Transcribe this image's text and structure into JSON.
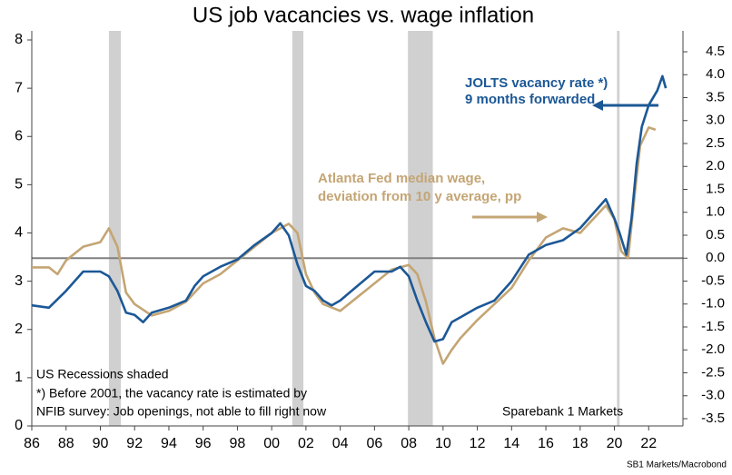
{
  "chart_data": {
    "type": "line",
    "title": "US job vacancies vs. wage inflation",
    "annotations": {
      "jolts_1": "JOLTS vacancy rate *)",
      "jolts_2": "9 months forwarded",
      "wage_1": "Atlanta Fed median wage,",
      "wage_2": "deviation from 10 y average, pp",
      "note_1": "US Recessions shaded",
      "note_2": "*) Before 2001, the vacancy rate is estimated by",
      "note_3": "NFIB survey: Job openings, not able to fill right now",
      "brand": "Sparebank 1 Markets",
      "source": "SB1 Markets/Macrobond"
    },
    "xlim": [
      1986,
      2024
    ],
    "xticks": [
      {
        "value": 1986,
        "label": "86"
      },
      {
        "value": 1988,
        "label": "88"
      },
      {
        "value": 1990,
        "label": "90"
      },
      {
        "value": 1992,
        "label": "92"
      },
      {
        "value": 1994,
        "label": "94"
      },
      {
        "value": 1996,
        "label": "96"
      },
      {
        "value": 1998,
        "label": "98"
      },
      {
        "value": 2000,
        "label": "00"
      },
      {
        "value": 2002,
        "label": "02"
      },
      {
        "value": 2004,
        "label": "04"
      },
      {
        "value": 2006,
        "label": "06"
      },
      {
        "value": 2008,
        "label": "08"
      },
      {
        "value": 2010,
        "label": "10"
      },
      {
        "value": 2012,
        "label": "12"
      },
      {
        "value": 2014,
        "label": "14"
      },
      {
        "value": 2016,
        "label": "16"
      },
      {
        "value": 2018,
        "label": "18"
      },
      {
        "value": 2020,
        "label": "20"
      },
      {
        "value": 2022,
        "label": "22"
      }
    ],
    "ylim": [
      0,
      8
    ],
    "yticks": [
      0,
      1,
      2,
      3,
      4,
      5,
      6,
      7,
      8
    ],
    "y2lim": [
      -3.5,
      4.5
    ],
    "y2ticks": [
      -3.5,
      {
        "value": -3,
        "label": "-3.0"
      },
      -2.5,
      {
        "value": -2,
        "label": "-2.0"
      },
      -1.5,
      {
        "value": -1,
        "label": "-1.0"
      },
      -0.5,
      {
        "value": 0,
        "label": "0.0"
      },
      0.5,
      {
        "value": 1,
        "label": "1.0"
      },
      1.5,
      {
        "value": 2,
        "label": "2.0"
      },
      2.5,
      {
        "value": 3,
        "label": "3.0"
      },
      3.5,
      {
        "value": 4,
        "label": "4.0"
      },
      4.5
    ],
    "recessions": [
      [
        1990.5,
        1991.2
      ],
      [
        2001.2,
        2001.85
      ],
      [
        2007.95,
        2009.4
      ],
      [
        2020.15,
        2020.3
      ]
    ],
    "recession_color": "#d0d0d0",
    "zero_line_y2": 0,
    "series": [
      {
        "name": "JOLTS vacancy rate",
        "color": "#1c5896",
        "axis": "y",
        "x": [
          1986,
          1987,
          1988,
          1989,
          1990,
          1990.5,
          1991,
          1991.5,
          1992,
          1992.5,
          1993,
          1994,
          1995,
          1995.5,
          1996,
          1997,
          1998,
          1999,
          2000,
          2000.5,
          2001,
          2001.5,
          2002,
          2002.5,
          2003,
          2003.5,
          2004,
          2005,
          2006,
          2007,
          2007.5,
          2008,
          2008.5,
          2009,
          2009.5,
          2010,
          2010.5,
          2011,
          2012,
          2013,
          2014,
          2015,
          2016,
          2017,
          2018,
          2019,
          2019.5,
          2020,
          2020.3,
          2020.7,
          2021,
          2021.3,
          2021.6,
          2022,
          2022.5,
          2022.8,
          2023
        ],
        "values": [
          2.5,
          2.45,
          2.8,
          3.2,
          3.2,
          3.1,
          2.8,
          2.35,
          2.3,
          2.15,
          2.35,
          2.45,
          2.6,
          2.9,
          3.1,
          3.3,
          3.45,
          3.75,
          4.0,
          4.2,
          3.95,
          3.35,
          2.9,
          2.8,
          2.6,
          2.5,
          2.6,
          2.9,
          3.2,
          3.2,
          3.3,
          3.1,
          2.6,
          2.15,
          1.75,
          1.8,
          2.15,
          2.25,
          2.45,
          2.6,
          3.0,
          3.55,
          3.75,
          3.85,
          4.1,
          4.5,
          4.7,
          4.3,
          4.0,
          3.55,
          4.3,
          5.45,
          6.2,
          6.65,
          6.95,
          7.25,
          7.0
        ]
      },
      {
        "name": "Atlanta Fed median wage",
        "color": "#c4a574",
        "axis": "y2",
        "x": [
          1986,
          1987,
          1987.5,
          1988,
          1989,
          1990,
          1990.5,
          1991,
          1991.5,
          1992,
          1993,
          1994,
          1995,
          1996,
          1997,
          1998,
          1999,
          2000,
          2001,
          2001.5,
          2002,
          2002.5,
          2003,
          2004,
          2005,
          2006,
          2007,
          2008,
          2008.5,
          2009,
          2009.5,
          2010,
          2010.5,
          2011,
          2012,
          2013,
          2014,
          2015,
          2016,
          2017,
          2018,
          2019,
          2019.5,
          2020,
          2020.4,
          2020.8,
          2021.2,
          2021.5,
          2022,
          2022.4
        ],
        "values": [
          -0.2,
          -0.2,
          -0.35,
          -0.05,
          0.25,
          0.35,
          0.65,
          0.25,
          -0.75,
          -1.0,
          -1.25,
          -1.15,
          -0.95,
          -0.55,
          -0.35,
          -0.05,
          0.25,
          0.55,
          0.75,
          0.55,
          -0.35,
          -0.75,
          -1.0,
          -1.15,
          -0.85,
          -0.55,
          -0.25,
          -0.15,
          -0.35,
          -0.95,
          -1.75,
          -2.3,
          -2.0,
          -1.75,
          -1.35,
          -1.0,
          -0.65,
          -0.05,
          0.45,
          0.65,
          0.55,
          0.95,
          1.15,
          0.85,
          0.15,
          0.0,
          1.45,
          2.45,
          2.85,
          2.8
        ]
      }
    ]
  }
}
